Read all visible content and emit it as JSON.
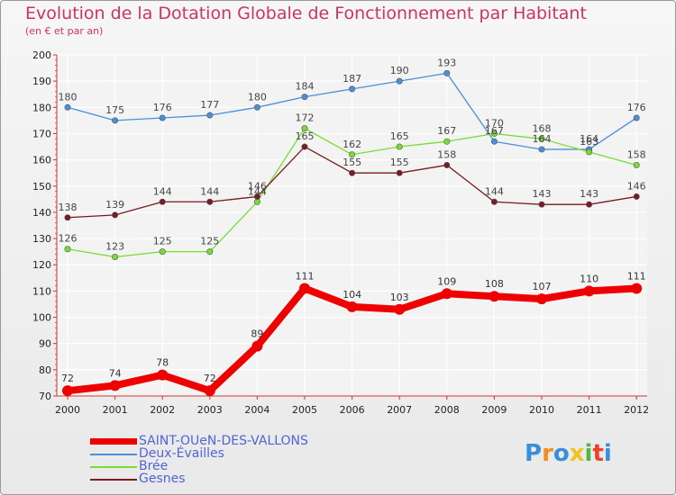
{
  "title": "Evolution de la Dotation Globale de Fonctionnement par Habitant",
  "subtitle": "(en € et par an)",
  "logo_text": "Proxiti",
  "chart_data": {
    "type": "line",
    "x": [
      "2000",
      "2001",
      "2002",
      "2003",
      "2004",
      "2005",
      "2006",
      "2007",
      "2008",
      "2009",
      "2010",
      "2011",
      "2012"
    ],
    "ylim": [
      70,
      200
    ],
    "yticks": [
      70,
      80,
      90,
      100,
      110,
      120,
      130,
      140,
      150,
      160,
      170,
      180,
      190,
      200
    ],
    "grid": true,
    "series": [
      {
        "name": "SAINT-OUeN-DES-VALLONS",
        "color": "#ee0000",
        "values": [
          72,
          74,
          78,
          72,
          89,
          111,
          104,
          103,
          109,
          108,
          107,
          110,
          111
        ]
      },
      {
        "name": "Deux-Évailles",
        "color": "#4a90d9",
        "values": [
          180,
          175,
          176,
          177,
          180,
          184,
          187,
          190,
          193,
          167,
          164,
          164,
          176
        ]
      },
      {
        "name": "Brée",
        "color": "#77dd33",
        "values": [
          126,
          123,
          125,
          125,
          144,
          172,
          162,
          165,
          167,
          170,
          168,
          163,
          158
        ]
      },
      {
        "name": "Gesnes",
        "color": "#7a1a22",
        "values": [
          138,
          139,
          144,
          144,
          146,
          165,
          155,
          155,
          158,
          144,
          143,
          143,
          146
        ]
      }
    ],
    "data_labels": [
      [
        "72",
        "74",
        "78",
        "72",
        "89",
        "111",
        "104",
        "103",
        "109",
        "108",
        "107",
        "110",
        "111"
      ],
      [
        "180",
        "175",
        "176",
        "177",
        "180",
        "184",
        "187",
        "190",
        "193",
        "167",
        "164",
        "164",
        "176"
      ],
      [
        "126",
        "123",
        "125",
        "125",
        "144",
        "172",
        "162",
        "165",
        "167",
        "170",
        "168",
        "163",
        "158"
      ],
      [
        "138",
        "139",
        "144",
        "144",
        "146",
        "165",
        "155",
        "155",
        "158",
        "144",
        "143",
        "143",
        "146"
      ]
    ]
  }
}
